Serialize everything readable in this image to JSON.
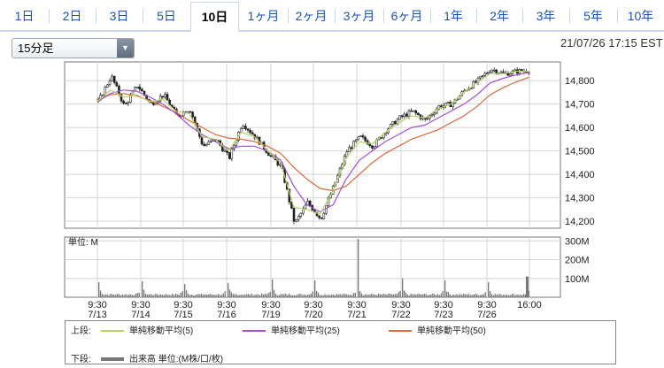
{
  "tabs": [
    {
      "label": "1日",
      "selected": false
    },
    {
      "label": "2日",
      "selected": false
    },
    {
      "label": "3日",
      "selected": false
    },
    {
      "label": "5日",
      "selected": false
    },
    {
      "label": "10日",
      "selected": true
    },
    {
      "label": "1ヶ月",
      "selected": false
    },
    {
      "label": "2ヶ月",
      "selected": false
    },
    {
      "label": "3ヶ月",
      "selected": false
    },
    {
      "label": "6ヶ月",
      "selected": false
    },
    {
      "label": "1年",
      "selected": false
    },
    {
      "label": "2年",
      "selected": false
    },
    {
      "label": "3年",
      "selected": false
    },
    {
      "label": "5年",
      "selected": false
    },
    {
      "label": "10年",
      "selected": false
    }
  ],
  "interval_select": {
    "value": "15分足",
    "icon": "triangle-down-icon"
  },
  "timestamp": "21/07/26 17:15 EST",
  "colors": {
    "ma5": "#b6d36a",
    "ma25": "#a64fd1",
    "ma50": "#dc6a3d",
    "candle": "#222222",
    "volume": "#777777"
  },
  "chart_data": [
    {
      "type": "line",
      "title": "",
      "x_sessions": [
        "7/13",
        "7/14",
        "7/15",
        "7/16",
        "7/19",
        "7/20",
        "7/21",
        "7/22",
        "7/23",
        "7/26"
      ],
      "xtick_times": [
        "9:30",
        "9:30",
        "9:30",
        "9:30",
        "9:30",
        "9:30",
        "9:30",
        "9:30",
        "9:30",
        "9:30",
        "16:00"
      ],
      "xtick_dates": [
        "7/13",
        "7/14",
        "7/15",
        "7/16",
        "7/19",
        "7/20",
        "7/21",
        "7/22",
        "7/23",
        "7/26",
        ""
      ],
      "ylim": [
        14170,
        14880
      ],
      "yticks": [
        14200,
        14300,
        14400,
        14500,
        14600,
        14700,
        14800
      ],
      "ytick_labels": [
        "14,200",
        "14,300",
        "14,400",
        "14,500",
        "14,600",
        "14,700",
        "14,800"
      ],
      "grid": true,
      "price_path": [
        14710,
        14820,
        14690,
        14780,
        14700,
        14740,
        14650,
        14680,
        14520,
        14550,
        14470,
        14620,
        14560,
        14490,
        14430,
        14190,
        14280,
        14210,
        14350,
        14500,
        14560,
        14520,
        14590,
        14640,
        14670,
        14630,
        14690,
        14700,
        14760,
        14800,
        14850,
        14830,
        14840,
        14845
      ],
      "ma5": [
        14710,
        14760,
        14730,
        14740,
        14710,
        14720,
        14670,
        14660,
        14560,
        14550,
        14500,
        14580,
        14560,
        14500,
        14450,
        14260,
        14250,
        14230,
        14330,
        14470,
        14540,
        14530,
        14580,
        14620,
        14650,
        14640,
        14680,
        14700,
        14750,
        14790,
        14830,
        14830,
        14840,
        14840
      ],
      "ma25": [
        14710,
        14745,
        14760,
        14755,
        14730,
        14700,
        14660,
        14610,
        14570,
        14540,
        14510,
        14520,
        14520,
        14500,
        14460,
        14350,
        14270,
        14240,
        14270,
        14380,
        14460,
        14500,
        14540,
        14570,
        14600,
        14610,
        14640,
        14670,
        14700,
        14740,
        14790,
        14810,
        14825,
        14835
      ],
      "ma50": [
        14720,
        14740,
        14745,
        14735,
        14715,
        14690,
        14665,
        14630,
        14600,
        14570,
        14555,
        14550,
        14540,
        14520,
        14490,
        14430,
        14380,
        14340,
        14330,
        14350,
        14400,
        14450,
        14490,
        14520,
        14550,
        14570,
        14590,
        14620,
        14650,
        14690,
        14740,
        14770,
        14795,
        14815
      ]
    },
    {
      "type": "bar",
      "title": "",
      "unit_label": "単位: M",
      "ylim": [
        0,
        320
      ],
      "yticks": [
        100,
        200,
        300
      ],
      "ytick_labels": [
        "100M",
        "200M",
        "300M"
      ],
      "open_spike_M": [
        80,
        85,
        70,
        75,
        95,
        90,
        310,
        100,
        90,
        80
      ],
      "close_spike_M": [
        110
      ]
    }
  ],
  "legend": {
    "upper_label": "上段:",
    "ma5_label": "単純移動平均(5)",
    "ma25_label": "単純移動平均(25)",
    "ma50_label": "単純移動平均(50)",
    "lower_label": "下段:",
    "volume_label": "出来高 単位:(M株/口/枚)"
  }
}
